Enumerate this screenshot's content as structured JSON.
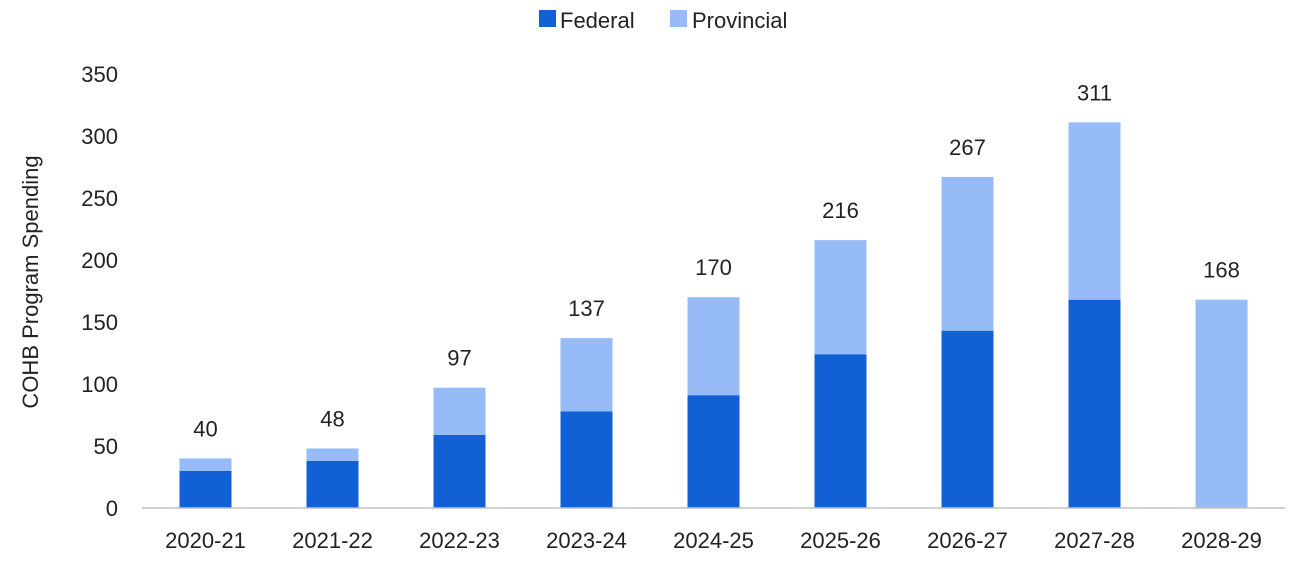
{
  "chart_data": {
    "type": "bar",
    "stacked": true,
    "categories": [
      "2020-21",
      "2021-22",
      "2022-23",
      "2023-24",
      "2024-25",
      "2025-26",
      "2026-27",
      "2027-28",
      "2028-29"
    ],
    "series": [
      {
        "name": "Federal",
        "color": "#1160d6",
        "values": [
          30,
          38,
          59,
          78,
          91,
          124,
          143,
          168,
          0
        ]
      },
      {
        "name": "Provincial",
        "color": "#96bbf7",
        "values": [
          10,
          10,
          38,
          59,
          79,
          92,
          124,
          143,
          168
        ]
      }
    ],
    "totals": [
      "40",
      "48",
      "97",
      "137",
      "170",
      "216",
      "267",
      "311",
      "168"
    ],
    "title": "",
    "xlabel": "",
    "ylabel": "COHB Program Spending",
    "ylim": [
      0,
      350
    ],
    "yticks": [
      "0",
      "50",
      "100",
      "150",
      "200",
      "250",
      "300",
      "350"
    ],
    "grid": false,
    "legend_position": "top-center"
  }
}
